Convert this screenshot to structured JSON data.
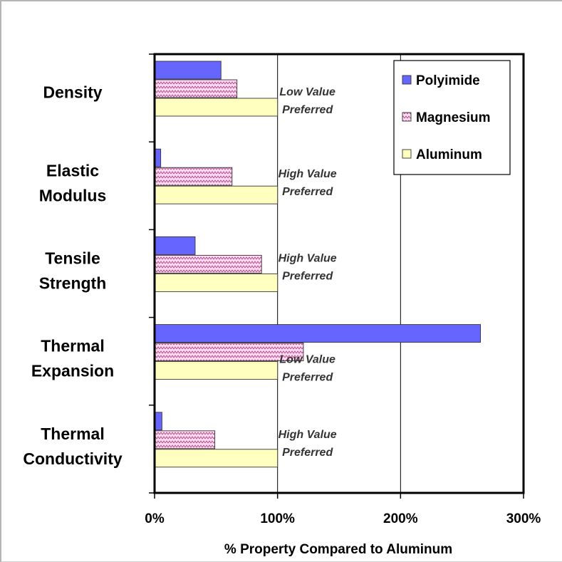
{
  "chart_data": {
    "type": "bar",
    "orientation": "horizontal",
    "categories": [
      [
        "Density"
      ],
      [
        "Elastic",
        "Modulus"
      ],
      [
        "Tensile",
        "Strength"
      ],
      [
        "Thermal",
        "Expansion"
      ],
      [
        "Thermal",
        "Conductivity"
      ]
    ],
    "series": [
      {
        "name": "Polyimide",
        "values": [
          54,
          5,
          33,
          265,
          6
        ],
        "color": "#6666ff",
        "pattern": "solid"
      },
      {
        "name": "Magnesium",
        "values": [
          67,
          63,
          87,
          121,
          49
        ],
        "color": "#ffccee",
        "pattern": "zigzag"
      },
      {
        "name": "Aluminum",
        "values": [
          100,
          100,
          100,
          100,
          100
        ],
        "color": "#ffffc0",
        "pattern": "solid"
      }
    ],
    "annotations": [
      [
        "Low Value",
        "Preferred"
      ],
      [
        "High Value",
        "Preferred"
      ],
      [
        "High Value",
        "Preferred"
      ],
      [
        "Low Value",
        "Preferred"
      ],
      [
        "High Value",
        "Preferred"
      ]
    ],
    "xlim": [
      0,
      300
    ],
    "xticks": [
      0,
      100,
      200,
      300
    ],
    "xtick_labels": [
      "0%",
      "100%",
      "200%",
      "300%"
    ],
    "xlabel": "% Property Compared to Aluminum",
    "grid": "vertical",
    "legend_position": "top-right"
  }
}
